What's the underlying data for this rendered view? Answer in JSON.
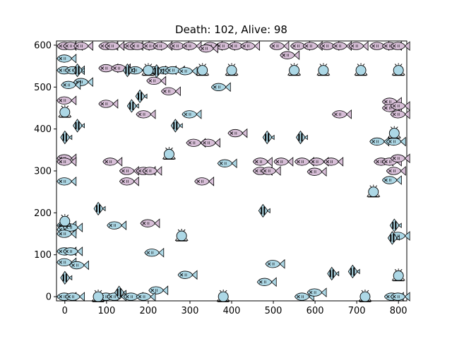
{
  "title": "Death: 102, Alive: 98",
  "axes": {
    "xlim": [
      -20,
      820
    ],
    "ylim": [
      -10,
      610
    ],
    "xticks": [
      0,
      100,
      200,
      300,
      400,
      500,
      600,
      700,
      800
    ],
    "yticks": [
      0,
      100,
      200,
      300,
      400,
      500,
      600
    ]
  },
  "colors": {
    "fish_light": "#add8e6",
    "fish_purple": "#d8bfd8",
    "spiky": "#add8e6",
    "stroke": "#000000"
  },
  "sprites": {
    "fish": [
      [
        0,
        598,
        "p"
      ],
      [
        15,
        598,
        "p"
      ],
      [
        40,
        598,
        "p"
      ],
      [
        100,
        598,
        "p"
      ],
      [
        115,
        598,
        "p"
      ],
      [
        160,
        598,
        "p"
      ],
      [
        175,
        598,
        "p"
      ],
      [
        205,
        598,
        "p"
      ],
      [
        230,
        598,
        "p"
      ],
      [
        270,
        598,
        "p"
      ],
      [
        300,
        598,
        "p"
      ],
      [
        350,
        598,
        "p"
      ],
      [
        380,
        598,
        "p"
      ],
      [
        410,
        598,
        "p"
      ],
      [
        440,
        598,
        "p"
      ],
      [
        510,
        598,
        "p"
      ],
      [
        560,
        598,
        "p"
      ],
      [
        590,
        598,
        "p"
      ],
      [
        630,
        598,
        "p"
      ],
      [
        660,
        598,
        "p"
      ],
      [
        700,
        598,
        "p"
      ],
      [
        750,
        598,
        "p"
      ],
      [
        780,
        598,
        "p"
      ],
      [
        800,
        598,
        "p"
      ],
      [
        340,
        592,
        "p"
      ],
      [
        0,
        568,
        "l"
      ],
      [
        535,
        576,
        "p"
      ],
      [
        100,
        545,
        "p"
      ],
      [
        130,
        545,
        "p"
      ],
      [
        0,
        540,
        "l"
      ],
      [
        20,
        540,
        "l"
      ],
      [
        170,
        540,
        "l"
      ],
      [
        215,
        540,
        "l"
      ],
      [
        240,
        540,
        "l"
      ],
      [
        260,
        540,
        "l"
      ],
      [
        290,
        538,
        "l"
      ],
      [
        215,
        515,
        "p"
      ],
      [
        40,
        512,
        "l"
      ],
      [
        10,
        505,
        "l"
      ],
      [
        370,
        500,
        "l"
      ],
      [
        250,
        490,
        "p"
      ],
      [
        0,
        468,
        "p"
      ],
      [
        100,
        460,
        "p"
      ],
      [
        190,
        435,
        "p"
      ],
      [
        300,
        435,
        "l"
      ],
      [
        660,
        435,
        "p"
      ],
      [
        780,
        465,
        "p"
      ],
      [
        780,
        450,
        "p"
      ],
      [
        800,
        435,
        "p"
      ],
      [
        800,
        455,
        "p"
      ],
      [
        410,
        390,
        "p"
      ],
      [
        310,
        367,
        "p"
      ],
      [
        345,
        367,
        "p"
      ],
      [
        750,
        370,
        "l"
      ],
      [
        790,
        370,
        "l"
      ],
      [
        0,
        330,
        "p"
      ],
      [
        0,
        322,
        "p"
      ],
      [
        110,
        322,
        "p"
      ],
      [
        385,
        318,
        "l"
      ],
      [
        470,
        322,
        "p"
      ],
      [
        520,
        322,
        "p"
      ],
      [
        570,
        322,
        "p"
      ],
      [
        605,
        322,
        "p"
      ],
      [
        640,
        322,
        "p"
      ],
      [
        760,
        322,
        "p"
      ],
      [
        780,
        322,
        "p"
      ],
      [
        800,
        330,
        "p"
      ],
      [
        150,
        300,
        "p"
      ],
      [
        190,
        300,
        "p"
      ],
      [
        205,
        300,
        "p"
      ],
      [
        470,
        300,
        "p"
      ],
      [
        490,
        300,
        "p"
      ],
      [
        600,
        298,
        "p"
      ],
      [
        790,
        300,
        "p"
      ],
      [
        0,
        275,
        "l"
      ],
      [
        150,
        275,
        "p"
      ],
      [
        330,
        275,
        "p"
      ],
      [
        780,
        278,
        "l"
      ],
      [
        0,
        170,
        "l"
      ],
      [
        0,
        160,
        "l"
      ],
      [
        15,
        165,
        "l"
      ],
      [
        0,
        150,
        "l"
      ],
      [
        120,
        170,
        "l"
      ],
      [
        200,
        175,
        "p"
      ],
      [
        0,
        108,
        "l"
      ],
      [
        15,
        108,
        "l"
      ],
      [
        210,
        105,
        "l"
      ],
      [
        0,
        82,
        "l"
      ],
      [
        30,
        75,
        "l"
      ],
      [
        500,
        78,
        "l"
      ],
      [
        290,
        52,
        "l"
      ],
      [
        480,
        35,
        "l"
      ],
      [
        220,
        15,
        "l"
      ],
      [
        0,
        0,
        "l"
      ],
      [
        20,
        0,
        "l"
      ],
      [
        100,
        0,
        "l"
      ],
      [
        120,
        0,
        "l"
      ],
      [
        160,
        0,
        "l"
      ],
      [
        190,
        0,
        "l"
      ],
      [
        570,
        0,
        "l"
      ],
      [
        600,
        10,
        "l"
      ],
      [
        785,
        0,
        "l"
      ],
      [
        800,
        0,
        "l"
      ],
      [
        800,
        145,
        "l"
      ]
    ],
    "angelfish": [
      [
        30,
        540
      ],
      [
        150,
        540
      ],
      [
        220,
        538
      ],
      [
        180,
        478
      ],
      [
        160,
        455
      ],
      [
        485,
        380
      ],
      [
        30,
        408
      ],
      [
        0,
        380
      ],
      [
        265,
        408
      ],
      [
        565,
        380
      ],
      [
        80,
        210
      ],
      [
        475,
        205
      ],
      [
        0,
        45
      ],
      [
        790,
        170
      ],
      [
        785,
        140
      ],
      [
        640,
        55
      ],
      [
        690,
        60
      ],
      [
        130,
        10
      ]
    ],
    "spiky": [
      [
        0,
        440
      ],
      [
        200,
        540
      ],
      [
        330,
        540
      ],
      [
        400,
        540
      ],
      [
        620,
        540
      ],
      [
        710,
        540
      ],
      [
        800,
        540
      ],
      [
        550,
        540
      ],
      [
        250,
        340
      ],
      [
        740,
        250
      ],
      [
        280,
        145
      ],
      [
        0,
        180
      ],
      [
        790,
        390
      ],
      [
        800,
        50
      ],
      [
        80,
        0
      ],
      [
        380,
        0
      ],
      [
        720,
        0
      ]
    ]
  }
}
